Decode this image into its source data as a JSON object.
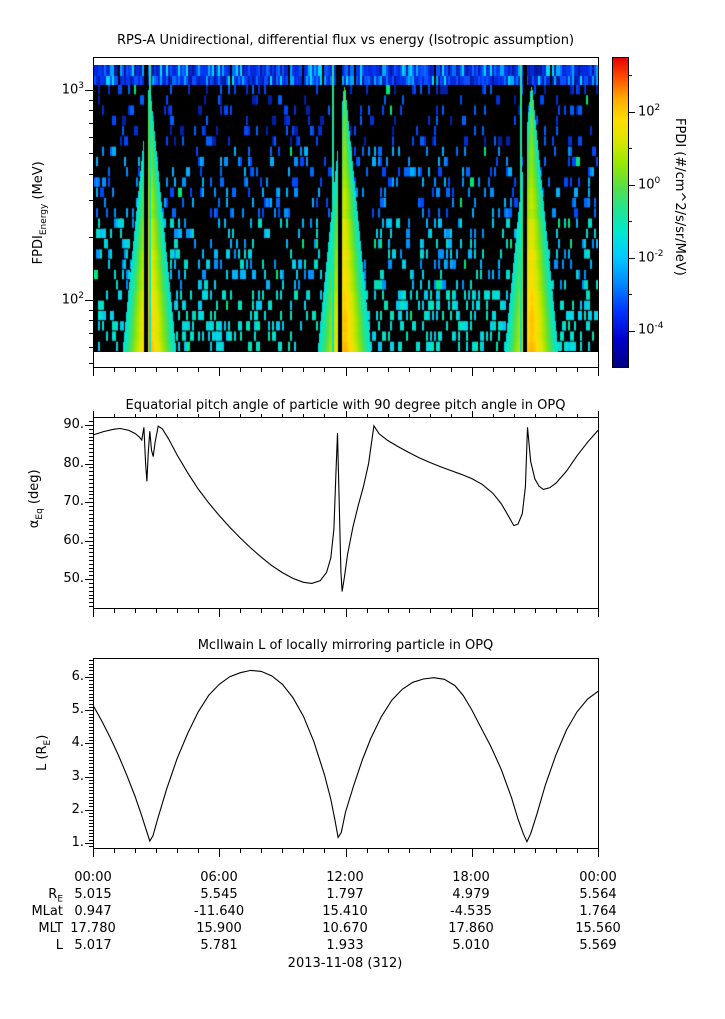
{
  "chart_data": [
    {
      "type": "heatmap",
      "title": "RPS-A Unidirectional, differential flux vs energy (Isotropic assumption)",
      "ylabel": {
        "main": "FPDI",
        "sub": "Energy",
        "rest": " (MeV)"
      },
      "yscale": "log",
      "ylim_mev": [
        56,
        1320
      ],
      "ytick_labels": [
        {
          "base": "10",
          "exp": "3"
        },
        {
          "base": "10",
          "exp": "2"
        }
      ],
      "ytick_exponents": [
        3,
        2
      ],
      "xlim_hours": [
        0,
        24
      ],
      "background": "#000000",
      "top_band": {
        "desc": "continuous blue noise column band at highest energy row"
      },
      "plumes": [
        {
          "center_hour": 2.66,
          "gap_hour": 2.5,
          "streak_hour": 2.73
        },
        {
          "center_hour": 11.93,
          "gap_hour": 11.72,
          "streak_hour": 11.41
        },
        {
          "center_hour": 20.82,
          "gap_hour": 20.51,
          "streak_hour": 20.34
        }
      ],
      "speckle_desc": "sparse blue columns at high energy, denser cyan-turquoise columns at low energy",
      "colorbar": {
        "label": "FPDI (#/cm^2/s/sr/MeV)",
        "scale": "log",
        "tick_labels": [
          {
            "base": "10",
            "exp": "2"
          },
          {
            "base": "10",
            "exp": "0"
          },
          {
            "base": "10",
            "exp": "-2"
          },
          {
            "base": "10",
            "exp": "-4"
          }
        ],
        "tick_exponents": [
          2,
          0,
          -2,
          -4
        ],
        "range_exponents": [
          -5.5,
          3.5
        ],
        "colormap_stops": [
          [
            0.0,
            "#000085"
          ],
          [
            0.09,
            "#0000cc"
          ],
          [
            0.18,
            "#0033ff"
          ],
          [
            0.27,
            "#0088ff"
          ],
          [
            0.36,
            "#00ccff"
          ],
          [
            0.44,
            "#00e8cc"
          ],
          [
            0.51,
            "#22e492"
          ],
          [
            0.58,
            "#55df4a"
          ],
          [
            0.66,
            "#99e800"
          ],
          [
            0.73,
            "#d9e600"
          ],
          [
            0.8,
            "#ffdd00"
          ],
          [
            0.87,
            "#ffaa00"
          ],
          [
            0.93,
            "#ff5500"
          ],
          [
            1.0,
            "#e60000"
          ]
        ]
      }
    },
    {
      "type": "line",
      "title": "Equatorial pitch angle of particle with 90 degree pitch angle in OPQ",
      "ylabel": {
        "main": "α",
        "sub": "Eq",
        "rest": " (deg)"
      },
      "ylim": [
        42.5,
        92.2
      ],
      "yticks": [
        90,
        80,
        70,
        60,
        50
      ],
      "ytick_labels": [
        "90.",
        "80.",
        "70.",
        "60.",
        "50."
      ],
      "points": [
        [
          0,
          87.4
        ],
        [
          0.5,
          88.3
        ],
        [
          1,
          88.9
        ],
        [
          1.3,
          89.1
        ],
        [
          1.7,
          88.6
        ],
        [
          2,
          87.8
        ],
        [
          2.2,
          86.9
        ],
        [
          2.32,
          86.1
        ],
        [
          2.42,
          89.4
        ],
        [
          2.5,
          80
        ],
        [
          2.56,
          75.4
        ],
        [
          2.63,
          83
        ],
        [
          2.7,
          88.4
        ],
        [
          2.78,
          83.5
        ],
        [
          2.86,
          81.8
        ],
        [
          2.95,
          85.5
        ],
        [
          3.1,
          89.7
        ],
        [
          3.3,
          89.0
        ],
        [
          3.6,
          86.3
        ],
        [
          4,
          82.2
        ],
        [
          4.5,
          77.6
        ],
        [
          5,
          73.4
        ],
        [
          5.5,
          69.8
        ],
        [
          6,
          66.5
        ],
        [
          6.5,
          63.5
        ],
        [
          7,
          60.7
        ],
        [
          7.5,
          58.1
        ],
        [
          8,
          55.7
        ],
        [
          8.5,
          53.5
        ],
        [
          9,
          51.7
        ],
        [
          9.5,
          50.2
        ],
        [
          10,
          49.2
        ],
        [
          10.4,
          48.9
        ],
        [
          10.8,
          49.6
        ],
        [
          11.1,
          51.8
        ],
        [
          11.3,
          55.5
        ],
        [
          11.45,
          63
        ],
        [
          11.55,
          78
        ],
        [
          11.62,
          87.9
        ],
        [
          11.7,
          70
        ],
        [
          11.78,
          52
        ],
        [
          11.84,
          46.8
        ],
        [
          11.95,
          50.5
        ],
        [
          12.1,
          56.5
        ],
        [
          12.35,
          63.5
        ],
        [
          12.6,
          69
        ],
        [
          12.85,
          74
        ],
        [
          13.1,
          80
        ],
        [
          13.35,
          89.8
        ],
        [
          13.6,
          87.7
        ],
        [
          14,
          86
        ],
        [
          14.5,
          84.4
        ],
        [
          15,
          82.9
        ],
        [
          15.5,
          81.5
        ],
        [
          16,
          80.3
        ],
        [
          16.5,
          79.2
        ],
        [
          17,
          78.2
        ],
        [
          17.5,
          77.2
        ],
        [
          18,
          76.1
        ],
        [
          18.5,
          74.6
        ],
        [
          19,
          72.3
        ],
        [
          19.4,
          69.6
        ],
        [
          19.7,
          66.8
        ],
        [
          20.0,
          63.9
        ],
        [
          20.2,
          64.3
        ],
        [
          20.4,
          67
        ],
        [
          20.55,
          74
        ],
        [
          20.65,
          89.4
        ],
        [
          20.8,
          80.5
        ],
        [
          21,
          76
        ],
        [
          21.2,
          74.1
        ],
        [
          21.4,
          73.3
        ],
        [
          21.7,
          73.7
        ],
        [
          22,
          74.9
        ],
        [
          22.5,
          78
        ],
        [
          23,
          82
        ],
        [
          23.5,
          85.5
        ],
        [
          24,
          88.6
        ]
      ]
    },
    {
      "type": "line",
      "title": "McIlwain L of locally mirroring particle in OPQ",
      "ylabel": {
        "main": "L (R",
        "sub": "E",
        "rest": ")"
      },
      "ylim": [
        0.85,
        6.55
      ],
      "yticks": [
        6,
        5,
        4,
        3,
        2,
        1
      ],
      "ytick_labels": [
        "6.",
        "5.",
        "4.",
        "3.",
        "2.",
        "1."
      ],
      "points": [
        [
          0,
          5.15
        ],
        [
          0.4,
          4.7
        ],
        [
          0.8,
          4.2
        ],
        [
          1.2,
          3.65
        ],
        [
          1.6,
          3.05
        ],
        [
          2,
          2.4
        ],
        [
          2.3,
          1.85
        ],
        [
          2.55,
          1.35
        ],
        [
          2.7,
          1.06
        ],
        [
          2.85,
          1.22
        ],
        [
          3.1,
          1.78
        ],
        [
          3.5,
          2.62
        ],
        [
          4,
          3.55
        ],
        [
          4.5,
          4.3
        ],
        [
          5,
          4.95
        ],
        [
          5.5,
          5.45
        ],
        [
          6,
          5.78
        ],
        [
          6.5,
          6.01
        ],
        [
          7,
          6.13
        ],
        [
          7.5,
          6.2
        ],
        [
          8,
          6.17
        ],
        [
          8.5,
          6.03
        ],
        [
          9,
          5.78
        ],
        [
          9.5,
          5.38
        ],
        [
          10,
          4.82
        ],
        [
          10.5,
          4.05
        ],
        [
          11,
          3.05
        ],
        [
          11.3,
          2.32
        ],
        [
          11.5,
          1.68
        ],
        [
          11.65,
          1.17
        ],
        [
          11.8,
          1.32
        ],
        [
          12,
          1.93
        ],
        [
          12.4,
          2.75
        ],
        [
          12.8,
          3.5
        ],
        [
          13.2,
          4.15
        ],
        [
          13.7,
          4.8
        ],
        [
          14.2,
          5.3
        ],
        [
          14.7,
          5.63
        ],
        [
          15.2,
          5.84
        ],
        [
          15.7,
          5.94
        ],
        [
          16.2,
          5.98
        ],
        [
          16.7,
          5.93
        ],
        [
          17.2,
          5.74
        ],
        [
          17.6,
          5.44
        ],
        [
          18,
          5.01
        ],
        [
          18.4,
          4.52
        ],
        [
          18.9,
          3.92
        ],
        [
          19.4,
          3.22
        ],
        [
          19.9,
          2.35
        ],
        [
          20.2,
          1.72
        ],
        [
          20.45,
          1.28
        ],
        [
          20.62,
          1.04
        ],
        [
          20.8,
          1.28
        ],
        [
          21.1,
          1.88
        ],
        [
          21.5,
          2.75
        ],
        [
          22,
          3.65
        ],
        [
          22.5,
          4.4
        ],
        [
          23,
          4.95
        ],
        [
          23.5,
          5.33
        ],
        [
          24,
          5.57
        ]
      ]
    }
  ],
  "xaxis": {
    "tick_hours": [
      0,
      6,
      12,
      18,
      24
    ],
    "tick_labels": [
      "00:00",
      "06:00",
      "12:00",
      "18:00",
      "00:00"
    ],
    "minor_step_hours": 1
  },
  "footer": {
    "rows": [
      {
        "main": "R",
        "sub": "E",
        "values": [
          "5.015",
          "5.545",
          "1.797",
          "4.979",
          "5.564"
        ]
      },
      {
        "main": "MLat",
        "sub": "",
        "values": [
          "0.947",
          "-11.640",
          "15.410",
          "-4.535",
          "1.764"
        ]
      },
      {
        "main": "MLT",
        "sub": "",
        "values": [
          "17.780",
          "15.900",
          "10.670",
          "17.860",
          "15.560"
        ]
      },
      {
        "main": "L",
        "sub": "",
        "values": [
          "5.017",
          "5.781",
          "1.933",
          "5.010",
          "5.569"
        ]
      }
    ],
    "date_label": "2013-11-08 (312)"
  }
}
